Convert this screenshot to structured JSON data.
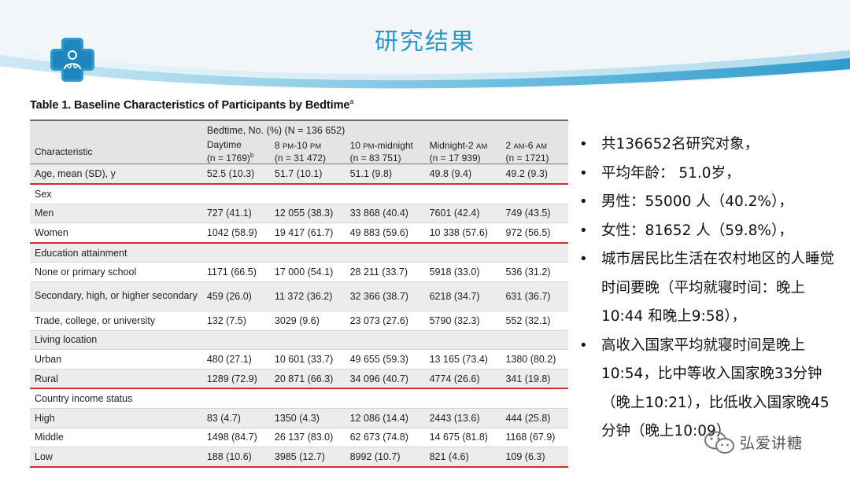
{
  "slide": {
    "title": "研究结果"
  },
  "table": {
    "title": "Table 1. Baseline Characteristics of Participants by Bedtime",
    "title_note": "a",
    "group_header": "Bedtime, No. (%) (N = 136 652)",
    "columns": [
      {
        "label": "Daytime",
        "sub": "(n = 1769)",
        "note": "b"
      },
      {
        "label": "8 PM-10 PM",
        "sub": "(n = 31 472)"
      },
      {
        "label": "10 PM-midnight",
        "sub": "(n = 83 751)"
      },
      {
        "label": "Midnight-2 AM",
        "sub": "(n = 17 939)"
      },
      {
        "label": "2 AM-6 AM",
        "sub": "(n = 1721)"
      }
    ],
    "row_header": "Characteristic",
    "rows": [
      {
        "label": "Age, mean (SD), y",
        "values": [
          "52.5 (10.3)",
          "51.7 (10.1)",
          "51.1 (9.8)",
          "49.8 (9.4)",
          "49.2 (9.3)"
        ]
      },
      {
        "label": "Sex",
        "values": []
      },
      {
        "label": "Men",
        "values": [
          "727 (41.1)",
          "12 055 (38.3)",
          "33 868 (40.4)",
          "7601 (42.4)",
          "749 (43.5)"
        ]
      },
      {
        "label": "Women",
        "values": [
          "1042 (58.9)",
          "19 417 (61.7)",
          "49 883 (59.6)",
          "10 338 (57.6)",
          "972 (56.5)"
        ]
      },
      {
        "label": "Education attainment",
        "values": []
      },
      {
        "label": "None or primary school",
        "values": [
          "1171 (66.5)",
          "17 000 (54.1)",
          "28 211 (33.7)",
          "5918 (33.0)",
          "536 (31.2)"
        ]
      },
      {
        "label": "Secondary, high, or higher secondary",
        "values": [
          "459 (26.0)",
          "11 372 (36.2)",
          "32 366 (38.7)",
          "6218 (34.7)",
          "631 (36.7)"
        ]
      },
      {
        "label": "Trade, college, or university",
        "values": [
          "132 (7.5)",
          "3029 (9.6)",
          "23 073 (27.6)",
          "5790 (32.3)",
          "552 (32.1)"
        ]
      },
      {
        "label": "Living location",
        "values": []
      },
      {
        "label": "Urban",
        "values": [
          "480 (27.1)",
          "10 601 (33.7)",
          "49 655 (59.3)",
          "13 165 (73.4)",
          "1380 (80.2)"
        ]
      },
      {
        "label": "Rural",
        "values": [
          "1289 (72.9)",
          "20 871 (66.3)",
          "34 096 (40.7)",
          "4774 (26.6)",
          "341 (19.8)"
        ]
      },
      {
        "label": "Country income status",
        "values": []
      },
      {
        "label": "High",
        "values": [
          "83 (4.7)",
          "1350 (4.3)",
          "12 086 (14.4)",
          "2443 (13.6)",
          "444 (25.8)"
        ]
      },
      {
        "label": "Middle",
        "values": [
          "1498 (84.7)",
          "26 137 (83.0)",
          "62 673 (74.8)",
          "14 675 (81.8)",
          "1168 (67.9)"
        ]
      },
      {
        "label": "Low",
        "values": [
          "188 (10.6)",
          "3985 (12.7)",
          "8992 (10.7)",
          "821 (4.6)",
          "109 (6.3)"
        ]
      }
    ]
  },
  "bullets": [
    "共136652名研究对象，",
    "平均年龄： 51.0岁，",
    "男性：55000 人（40.2%），",
    "女性：81652 人（59.8%），",
    "城市居民比生活在农村地区的人睡觉时间要晚（平均就寝时间：晚上10:44 和晚上9:58），",
    "高收入国家平均就寝时间是晚上10:54，比中等收入国家晚33分钟（晚上10:21），比低收入国家晚45分钟（晚上10:09）"
  ],
  "watermark": {
    "text": "弘爱讲糖",
    "icon": "wechat-icon"
  },
  "colors": {
    "title": "#2a97c9",
    "band": "#39a8d4",
    "accent_red": "#d62b2b"
  }
}
